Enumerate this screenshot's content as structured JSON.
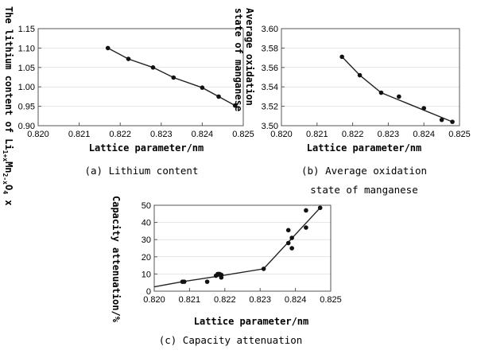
{
  "chart_data": [
    {
      "type": "scatter",
      "panel": "a",
      "caption": "(a) Lithium content",
      "xlabel": "Lattice parameter/nm",
      "ylabel_parts": [
        "The lithium content of Li",
        "1+x",
        "Mn",
        "2-x",
        "O",
        "4",
        " x"
      ],
      "xlim": [
        0.82,
        0.825
      ],
      "ylim": [
        0.9,
        1.15
      ],
      "xticks": [
        0.82,
        0.821,
        0.822,
        0.823,
        0.824,
        0.825
      ],
      "yticks": [
        0.9,
        0.95,
        1.0,
        1.05,
        1.1,
        1.15
      ],
      "xtick_labels": [
        "0.820",
        "0.821",
        "0.822",
        "0.823",
        "0.824",
        "0.825"
      ],
      "ytick_labels": [
        "0.90",
        "0.95",
        "1.00",
        "1.05",
        "1.10",
        "1.15"
      ],
      "points": [
        [
          0.8217,
          1.1
        ],
        [
          0.8222,
          1.072
        ],
        [
          0.8228,
          1.05
        ],
        [
          0.8233,
          1.024
        ],
        [
          0.824,
          0.998
        ],
        [
          0.8244,
          0.975
        ],
        [
          0.8248,
          0.952
        ]
      ],
      "line": [
        [
          0.8217,
          1.1
        ],
        [
          0.8222,
          1.072
        ],
        [
          0.8228,
          1.05
        ],
        [
          0.8233,
          1.024
        ],
        [
          0.824,
          0.998
        ],
        [
          0.8244,
          0.975
        ],
        [
          0.8248,
          0.952
        ]
      ]
    },
    {
      "type": "scatter",
      "panel": "b",
      "caption_lines": [
        "(b) Average oxidation",
        "state of manganese"
      ],
      "xlabel": "Lattice parameter/nm",
      "ylabel_lines": [
        "Average oxidation",
        "state of manganese"
      ],
      "xlim": [
        0.82,
        0.825
      ],
      "ylim": [
        3.5,
        3.6
      ],
      "xticks": [
        0.82,
        0.821,
        0.822,
        0.823,
        0.824,
        0.825
      ],
      "yticks": [
        3.5,
        3.52,
        3.54,
        3.56,
        3.58,
        3.6
      ],
      "xtick_labels": [
        "0.820",
        "0.821",
        "0.822",
        "0.823",
        "0.824",
        "0.825"
      ],
      "ytick_labels": [
        "3.50",
        "3.52",
        "3.54",
        "3.56",
        "3.58",
        "3.60"
      ],
      "points": [
        [
          0.8217,
          3.571
        ],
        [
          0.8222,
          3.552
        ],
        [
          0.8228,
          3.534
        ],
        [
          0.8233,
          3.53
        ],
        [
          0.824,
          3.518
        ],
        [
          0.8245,
          3.506
        ],
        [
          0.8248,
          3.504
        ]
      ],
      "line": [
        [
          0.8217,
          3.571
        ],
        [
          0.8222,
          3.552
        ],
        [
          0.8228,
          3.534
        ],
        [
          0.8248,
          3.504
        ]
      ]
    },
    {
      "type": "scatter",
      "panel": "c",
      "caption": "(c) Capacity attenuation",
      "xlabel": "Lattice parameter/nm",
      "ylabel": "Capacity attenuation/%",
      "xlim": [
        0.82,
        0.825
      ],
      "ylim": [
        0,
        50
      ],
      "xticks": [
        0.82,
        0.821,
        0.822,
        0.823,
        0.824,
        0.825
      ],
      "yticks": [
        0,
        10,
        20,
        30,
        40,
        50
      ],
      "xtick_labels": [
        "0.820",
        "0.821",
        "0.822",
        "0.823",
        "0.824",
        "0.825"
      ],
      "ytick_labels": [
        "0",
        "10",
        "20",
        "30",
        "40",
        "50"
      ],
      "points": [
        [
          0.8208,
          5.5
        ],
        [
          0.82085,
          5.5
        ],
        [
          0.8215,
          5.5
        ],
        [
          0.82175,
          9.0
        ],
        [
          0.8218,
          10.0
        ],
        [
          0.82185,
          10.0
        ],
        [
          0.8219,
          8.0
        ],
        [
          0.8219,
          9.5
        ],
        [
          0.8231,
          13.0
        ],
        [
          0.8238,
          28.0
        ],
        [
          0.8239,
          25.0
        ],
        [
          0.8239,
          31.0
        ],
        [
          0.8238,
          35.5
        ],
        [
          0.8243,
          37.0
        ],
        [
          0.8243,
          47.0
        ],
        [
          0.8247,
          48.5
        ]
      ],
      "line": [
        [
          0.82,
          2.5
        ],
        [
          0.8208,
          5.5
        ],
        [
          0.8219,
          9.0
        ],
        [
          0.8231,
          13.0
        ],
        [
          0.8247,
          48.5
        ]
      ]
    }
  ]
}
